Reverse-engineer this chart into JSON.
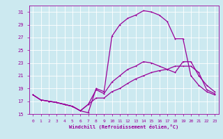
{
  "xlabel": "Windchill (Refroidissement éolien,°C)",
  "xlim": [
    -0.5,
    23.5
  ],
  "ylim": [
    15,
    32
  ],
  "yticks": [
    15,
    17,
    19,
    21,
    23,
    25,
    27,
    29,
    31
  ],
  "xticks": [
    0,
    1,
    2,
    3,
    4,
    5,
    6,
    7,
    8,
    9,
    10,
    11,
    12,
    13,
    14,
    15,
    16,
    17,
    18,
    19,
    20,
    21,
    22,
    23
  ],
  "background_color": "#cce9f0",
  "grid_color": "#ffffff",
  "line_color": "#990099",
  "line1_x": [
    0,
    1,
    2,
    3,
    4,
    5,
    6,
    7,
    8,
    9,
    10,
    11,
    12,
    13,
    14,
    15,
    16,
    17,
    18,
    19,
    20,
    21,
    22,
    23
  ],
  "line1_y": [
    18.0,
    17.2,
    17.0,
    16.8,
    16.5,
    16.2,
    15.5,
    15.2,
    19.0,
    18.5,
    27.2,
    29.0,
    30.0,
    30.5,
    31.2,
    31.0,
    30.5,
    29.5,
    26.8,
    26.8,
    21.0,
    19.5,
    18.5,
    18.0
  ],
  "line2_x": [
    0,
    1,
    2,
    3,
    4,
    5,
    6,
    7,
    8,
    9,
    10,
    11,
    12,
    13,
    14,
    15,
    16,
    17,
    18,
    19,
    20,
    21,
    22,
    23
  ],
  "line2_y": [
    18.0,
    17.2,
    17.0,
    16.8,
    16.5,
    16.2,
    15.5,
    16.5,
    18.8,
    18.2,
    20.0,
    21.0,
    22.0,
    22.5,
    23.2,
    23.0,
    22.5,
    22.0,
    21.5,
    23.2,
    23.2,
    21.0,
    19.5,
    18.5
  ],
  "line3_x": [
    0,
    1,
    2,
    3,
    4,
    5,
    6,
    7,
    8,
    9,
    10,
    11,
    12,
    13,
    14,
    15,
    16,
    17,
    18,
    19,
    20,
    21,
    22,
    23
  ],
  "line3_y": [
    18.0,
    17.2,
    17.0,
    16.8,
    16.5,
    16.2,
    15.5,
    16.5,
    17.5,
    17.5,
    18.5,
    19.0,
    19.8,
    20.5,
    21.0,
    21.5,
    21.8,
    22.0,
    22.5,
    22.5,
    22.5,
    21.5,
    18.8,
    18.2
  ]
}
